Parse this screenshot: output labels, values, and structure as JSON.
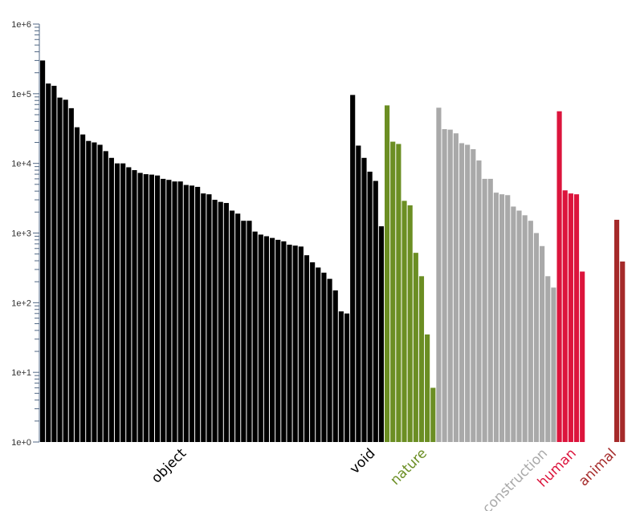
{
  "chart_data": {
    "type": "bar",
    "title": "",
    "xlabel": "",
    "ylabel": "",
    "yscale": "log",
    "ylim": [
      1,
      1000000
    ],
    "yticks": [
      {
        "value": 1,
        "label": "1e+0"
      },
      {
        "value": 10,
        "label": "1e+1"
      },
      {
        "value": 100,
        "label": "1e+2"
      },
      {
        "value": 1000,
        "label": "1e+3"
      },
      {
        "value": 10000,
        "label": "1e+4"
      },
      {
        "value": 100000,
        "label": "1e+5"
      },
      {
        "value": 1000000,
        "label": "1e+6"
      }
    ],
    "grid": false,
    "legend": "none",
    "groups": [
      {
        "name": "object",
        "color": "#000000",
        "values": [
          300000,
          140000,
          130000,
          88000,
          82000,
          62000,
          33000,
          26000,
          21000,
          20000,
          18500,
          15000,
          12000,
          10000,
          10000,
          8800,
          8000,
          7300,
          7000,
          6900,
          6700,
          6000,
          5800,
          5500,
          5500,
          4900,
          4800,
          4600,
          3700,
          3600,
          3000,
          2800,
          2700,
          2100,
          1900,
          1500,
          1500,
          1050,
          950,
          900,
          850,
          800,
          760,
          680,
          660,
          640,
          480,
          380,
          320,
          270,
          220,
          150,
          75,
          70
        ]
      },
      {
        "name": "void",
        "color": "#000000",
        "values": [
          96000,
          18000,
          12000,
          7600,
          5600,
          1250
        ]
      },
      {
        "name": "nature",
        "color": "#6b8e23",
        "values": [
          68000,
          20500,
          19000,
          2900,
          2500,
          520,
          240,
          35,
          6
        ]
      },
      {
        "name": "construction",
        "color": "#a9a9a9",
        "values": [
          63000,
          31000,
          30500,
          27000,
          19500,
          18500,
          16000,
          11000,
          6000,
          6000,
          3800,
          3600,
          3500,
          2400,
          2100,
          1800,
          1500,
          1000,
          650,
          240,
          165
        ]
      },
      {
        "name": "human",
        "color": "#dc143c",
        "values": [
          56000,
          4100,
          3700,
          3600,
          280
        ]
      },
      {
        "name": "animal",
        "color": "#a52a2a",
        "values": [
          1550,
          390
        ]
      }
    ]
  }
}
